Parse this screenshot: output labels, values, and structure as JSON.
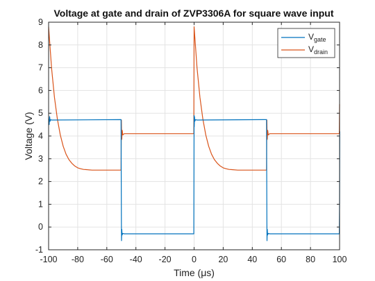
{
  "chart_data": {
    "type": "line",
    "title": "Voltage at gate and drain of ZVP3306A for square wave input",
    "xlabel": "Time (μs)",
    "ylabel": "Voltage (V)",
    "xlim": [
      -100,
      100
    ],
    "ylim": [
      -1,
      9
    ],
    "xticks": [
      "-100",
      "-80",
      "-60",
      "-40",
      "-20",
      "0",
      "20",
      "40",
      "60",
      "80",
      "100"
    ],
    "yticks": [
      "-1",
      "0",
      "1",
      "2",
      "3",
      "4",
      "5",
      "6",
      "7",
      "8",
      "9"
    ],
    "grid": true,
    "legend_position": "top-right",
    "series": [
      {
        "name": "V_gate",
        "legend_main": "V",
        "legend_sub": "gate",
        "color": "#0072bd",
        "x": [
          -100,
          -99.6,
          -99.3,
          -99,
          -98.5,
          -98,
          -50.2,
          -50,
          -49.9,
          -49.7,
          -49.5,
          -49,
          -48,
          -0.2,
          0,
          0.1,
          0.3,
          0.5,
          1,
          2,
          49.8,
          50,
          50.1,
          50.3,
          50.5,
          51,
          52,
          99.8,
          100,
          100.1
        ],
        "y": [
          4.75,
          4.5,
          4.85,
          4.65,
          4.72,
          4.7,
          4.72,
          0.3,
          -0.6,
          -0.1,
          -0.35,
          -0.28,
          -0.3,
          -0.3,
          4.9,
          4.4,
          4.85,
          4.65,
          4.72,
          4.7,
          4.72,
          0.3,
          -0.6,
          -0.1,
          -0.35,
          -0.28,
          -0.3,
          -0.3,
          1.1,
          4.2
        ]
      },
      {
        "name": "V_drain",
        "legend_main": "V",
        "legend_sub": "drain",
        "color": "#d95319",
        "x": [
          -100,
          -98,
          -96,
          -94,
          -92,
          -90,
          -88,
          -86,
          -84,
          -82,
          -80,
          -78,
          -76,
          -74,
          -70,
          -66,
          -60,
          -50.2,
          -50,
          -49.9,
          -49.7,
          -49.4,
          -49,
          -48,
          -40,
          -30,
          -20,
          -10,
          -0.2,
          0,
          2,
          4,
          6,
          8,
          10,
          12,
          14,
          16,
          18,
          20,
          22,
          24,
          26,
          30,
          34,
          40,
          49.8,
          50,
          50.1,
          50.3,
          50.6,
          51,
          52,
          60,
          70,
          80,
          90,
          99.8,
          100
        ],
        "y": [
          8.8,
          7.0,
          5.7,
          4.75,
          4.05,
          3.55,
          3.2,
          2.96,
          2.8,
          2.68,
          2.6,
          2.56,
          2.53,
          2.52,
          2.5,
          2.5,
          2.5,
          2.5,
          4.7,
          4.3,
          3.85,
          4.25,
          4.05,
          4.1,
          4.1,
          4.1,
          4.1,
          4.1,
          4.1,
          8.8,
          7.0,
          5.7,
          4.75,
          4.05,
          3.55,
          3.2,
          2.96,
          2.8,
          2.68,
          2.6,
          2.56,
          2.53,
          2.52,
          2.5,
          2.5,
          2.5,
          2.5,
          4.7,
          4.3,
          3.85,
          4.25,
          4.05,
          4.1,
          4.1,
          4.1,
          4.1,
          4.1,
          4.1,
          5.4
        ]
      }
    ]
  }
}
